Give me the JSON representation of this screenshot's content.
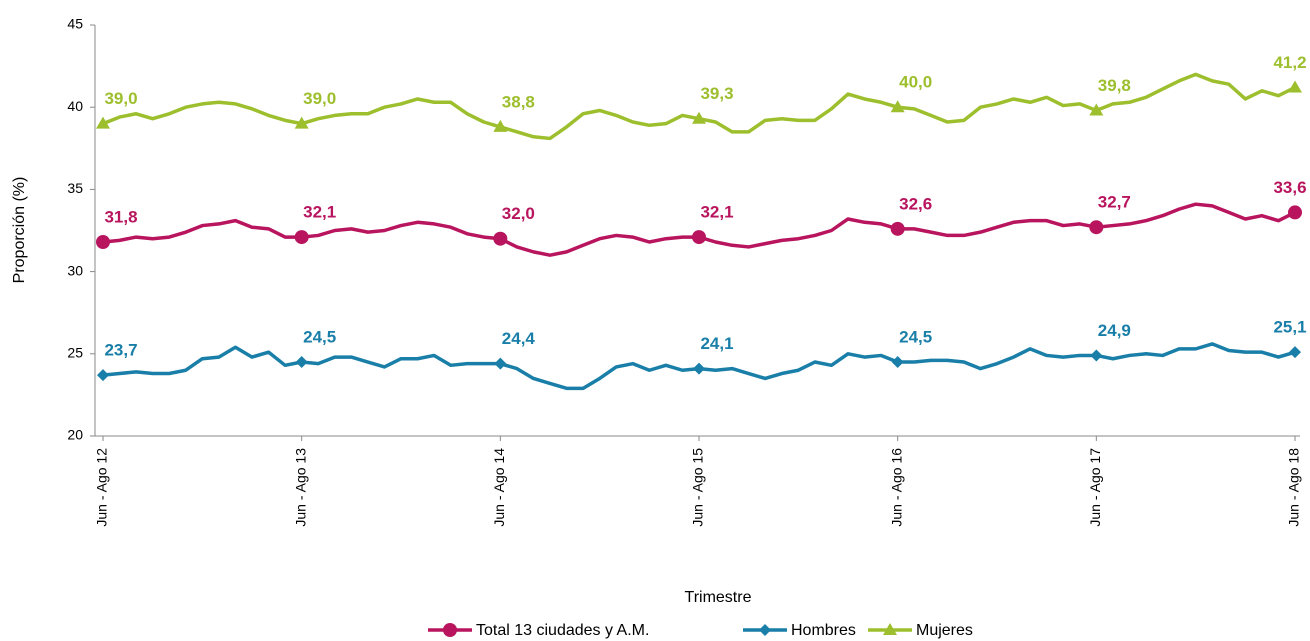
{
  "chart_data": {
    "type": "line",
    "x_label": "Trimestre",
    "y_label": "Proporción (%)",
    "categories": [
      "Jun - Ago 12",
      null,
      null,
      null,
      null,
      null,
      null,
      null,
      null,
      null,
      null,
      null,
      "Jun - Ago 13",
      null,
      null,
      null,
      null,
      null,
      null,
      null,
      null,
      null,
      null,
      null,
      "Jun - Ago 14",
      null,
      null,
      null,
      null,
      null,
      null,
      null,
      null,
      null,
      null,
      null,
      "Jun - Ago 15",
      null,
      null,
      null,
      null,
      null,
      null,
      null,
      null,
      null,
      null,
      null,
      "Jun - Ago 16",
      null,
      null,
      null,
      null,
      null,
      null,
      null,
      null,
      null,
      null,
      null,
      "Jun - Ago 17",
      null,
      null,
      null,
      null,
      null,
      null,
      null,
      null,
      null,
      null,
      null,
      "Jun - Ago 18"
    ],
    "ylim": [
      20,
      45
    ],
    "yticks": [
      20,
      25,
      30,
      35,
      40,
      45
    ],
    "series": [
      {
        "name": "Total 13 ciudades y A.M.",
        "color": "#b8155e",
        "marker": "circle",
        "values": [
          31.8,
          31.9,
          32.1,
          32.0,
          32.1,
          32.4,
          32.8,
          32.9,
          33.1,
          32.7,
          32.6,
          32.1,
          32.1,
          32.2,
          32.5,
          32.6,
          32.4,
          32.5,
          32.8,
          33.0,
          32.9,
          32.7,
          32.3,
          32.1,
          32.0,
          31.5,
          31.2,
          31.0,
          31.2,
          31.6,
          32.0,
          32.2,
          32.1,
          31.8,
          32.0,
          32.1,
          32.1,
          31.8,
          31.6,
          31.5,
          31.7,
          31.9,
          32.0,
          32.2,
          32.5,
          33.2,
          33.0,
          32.9,
          32.6,
          32.6,
          32.4,
          32.2,
          32.2,
          32.4,
          32.7,
          33.0,
          33.1,
          33.1,
          32.8,
          32.9,
          32.7,
          32.8,
          32.9,
          33.1,
          33.4,
          33.8,
          34.1,
          34.0,
          33.6,
          33.2,
          33.4,
          33.1,
          33.6
        ],
        "value_labels": [
          "31,8",
          null,
          null,
          null,
          null,
          null,
          null,
          null,
          null,
          null,
          null,
          null,
          "32,1",
          null,
          null,
          null,
          null,
          null,
          null,
          null,
          null,
          null,
          null,
          null,
          "32,0",
          null,
          null,
          null,
          null,
          null,
          null,
          null,
          null,
          null,
          null,
          null,
          "32,1",
          null,
          null,
          null,
          null,
          null,
          null,
          null,
          null,
          null,
          null,
          null,
          "32,6",
          null,
          null,
          null,
          null,
          null,
          null,
          null,
          null,
          null,
          null,
          null,
          "32,7",
          null,
          null,
          null,
          null,
          null,
          null,
          null,
          null,
          null,
          null,
          null,
          "33,6"
        ]
      },
      {
        "name": "Hombres",
        "color": "#1a7fa8",
        "marker": "diamond",
        "values": [
          23.7,
          23.8,
          23.9,
          23.8,
          23.8,
          24.0,
          24.7,
          24.8,
          25.4,
          24.8,
          25.1,
          24.3,
          24.5,
          24.4,
          24.8,
          24.8,
          24.5,
          24.2,
          24.7,
          24.7,
          24.9,
          24.3,
          24.4,
          24.4,
          24.4,
          24.1,
          23.5,
          23.2,
          22.9,
          22.9,
          23.5,
          24.2,
          24.4,
          24.0,
          24.3,
          24.0,
          24.1,
          24.0,
          24.1,
          23.8,
          23.5,
          23.8,
          24.0,
          24.5,
          24.3,
          25.0,
          24.8,
          24.9,
          24.5,
          24.5,
          24.6,
          24.6,
          24.5,
          24.1,
          24.4,
          24.8,
          25.3,
          24.9,
          24.8,
          24.9,
          24.9,
          24.7,
          24.9,
          25.0,
          24.9,
          25.3,
          25.3,
          25.6,
          25.2,
          25.1,
          25.1,
          24.8,
          25.1
        ],
        "value_labels": [
          "23,7",
          null,
          null,
          null,
          null,
          null,
          null,
          null,
          null,
          null,
          null,
          null,
          "24,5",
          null,
          null,
          null,
          null,
          null,
          null,
          null,
          null,
          null,
          null,
          null,
          "24,4",
          null,
          null,
          null,
          null,
          null,
          null,
          null,
          null,
          null,
          null,
          null,
          "24,1",
          null,
          null,
          null,
          null,
          null,
          null,
          null,
          null,
          null,
          null,
          null,
          "24,5",
          null,
          null,
          null,
          null,
          null,
          null,
          null,
          null,
          null,
          null,
          null,
          "24,9",
          null,
          null,
          null,
          null,
          null,
          null,
          null,
          null,
          null,
          null,
          null,
          "25,1"
        ]
      },
      {
        "name": "Mujeres",
        "color": "#9dbf2e",
        "marker": "triangle",
        "values": [
          39.0,
          39.4,
          39.6,
          39.3,
          39.6,
          40.0,
          40.2,
          40.3,
          40.2,
          39.9,
          39.5,
          39.2,
          39.0,
          39.3,
          39.5,
          39.6,
          39.6,
          40.0,
          40.2,
          40.5,
          40.3,
          40.3,
          39.6,
          39.1,
          38.8,
          38.5,
          38.2,
          38.1,
          38.8,
          39.6,
          39.8,
          39.5,
          39.1,
          38.9,
          39.0,
          39.5,
          39.3,
          39.1,
          38.5,
          38.5,
          39.2,
          39.3,
          39.2,
          39.2,
          39.9,
          40.8,
          40.5,
          40.3,
          40.0,
          39.9,
          39.5,
          39.1,
          39.2,
          40.0,
          40.2,
          40.5,
          40.3,
          40.6,
          40.1,
          40.2,
          39.8,
          40.2,
          40.3,
          40.6,
          41.1,
          41.6,
          42.0,
          41.6,
          41.4,
          40.5,
          41.0,
          40.7,
          41.2
        ],
        "value_labels": [
          "39,0",
          null,
          null,
          null,
          null,
          null,
          null,
          null,
          null,
          null,
          null,
          null,
          "39,0",
          null,
          null,
          null,
          null,
          null,
          null,
          null,
          null,
          null,
          null,
          null,
          "38,8",
          null,
          null,
          null,
          null,
          null,
          null,
          null,
          null,
          null,
          null,
          null,
          "39,3",
          null,
          null,
          null,
          null,
          null,
          null,
          null,
          null,
          null,
          null,
          null,
          "40,0",
          null,
          null,
          null,
          null,
          null,
          null,
          null,
          null,
          null,
          null,
          null,
          "39,8",
          null,
          null,
          null,
          null,
          null,
          null,
          null,
          null,
          null,
          null,
          null,
          "41,2"
        ]
      }
    ],
    "legend": "bottom"
  }
}
